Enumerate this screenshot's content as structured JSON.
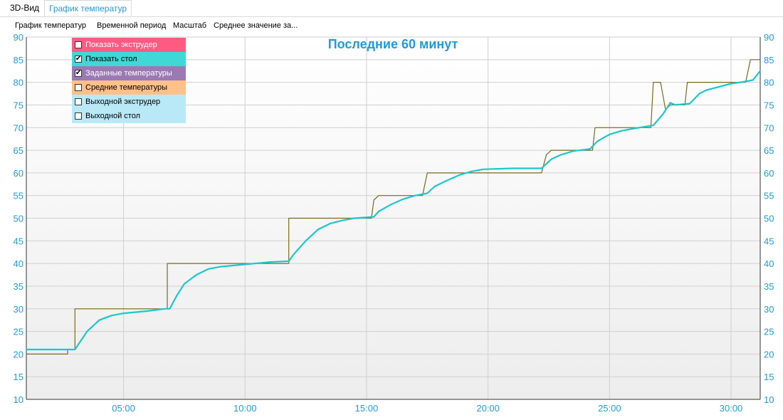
{
  "tabs": [
    {
      "label": "3D-Вид",
      "active": false
    },
    {
      "label": "График температур",
      "active": true
    }
  ],
  "menu": [
    "График температур",
    "Временной период",
    "Масштаб",
    "Среднее значение за..."
  ],
  "legend": [
    {
      "label": "Показать экструдер",
      "checked": false,
      "color": "#ff5a82"
    },
    {
      "label": "Показать стол",
      "checked": true,
      "color": "#40d8d6"
    },
    {
      "label": "Заданные температуры",
      "checked": true,
      "color": "#9a7ab3"
    },
    {
      "label": "Средние температуры",
      "checked": false,
      "color": "#ffc08a"
    },
    {
      "label": "Выходной экструдер",
      "checked": false,
      "color": "#b9e9f7"
    },
    {
      "label": "Выходной стол",
      "checked": false,
      "color": "#b9e9f7"
    }
  ],
  "chart_data": {
    "type": "line",
    "title": "Последние 60 минут",
    "xlabel": "",
    "ylabel": "",
    "x_unit": "minutes",
    "xlim": [
      1.0,
      31.2
    ],
    "ylim": [
      10,
      90
    ],
    "y_ticks": [
      10,
      15,
      20,
      25,
      30,
      35,
      40,
      45,
      50,
      55,
      60,
      65,
      70,
      75,
      80,
      85,
      90
    ],
    "x_ticks": [
      {
        "value": 5,
        "label": "05:00"
      },
      {
        "value": 10,
        "label": "10:00"
      },
      {
        "value": 15,
        "label": "15:00"
      },
      {
        "value": 20,
        "label": "20:00"
      },
      {
        "value": 25,
        "label": "25:00"
      },
      {
        "value": 30,
        "label": "30:00"
      }
    ],
    "grid": true,
    "accent_color": "#1e9bd7",
    "series": [
      {
        "color": "#7a6a1a",
        "points": [
          [
            1.0,
            20
          ],
          [
            2.7,
            20
          ],
          [
            2.7,
            21
          ],
          [
            3.0,
            21
          ],
          [
            3.0,
            30
          ],
          [
            6.6,
            30
          ],
          [
            6.8,
            30
          ],
          [
            6.8,
            40
          ],
          [
            11.6,
            40
          ],
          [
            11.8,
            40
          ],
          [
            11.8,
            50
          ],
          [
            15.2,
            50
          ],
          [
            15.3,
            54
          ],
          [
            15.5,
            55
          ],
          [
            17.3,
            55
          ],
          [
            17.5,
            60
          ],
          [
            22.2,
            60
          ],
          [
            22.4,
            64
          ],
          [
            22.6,
            65
          ],
          [
            24.3,
            65
          ],
          [
            24.4,
            70
          ],
          [
            26.7,
            70
          ],
          [
            26.8,
            80
          ],
          [
            27.1,
            80
          ],
          [
            27.3,
            74
          ],
          [
            27.5,
            75
          ],
          [
            28.1,
            75
          ],
          [
            28.2,
            80
          ],
          [
            30.6,
            80
          ],
          [
            30.8,
            85
          ],
          [
            31.2,
            85
          ]
        ]
      },
      {
        "color": "#1ac8cc",
        "points": [
          [
            1.0,
            21
          ],
          [
            2.0,
            21
          ],
          [
            3.0,
            21
          ],
          [
            3.5,
            25
          ],
          [
            4.0,
            27.5
          ],
          [
            4.5,
            28.5
          ],
          [
            5.0,
            29
          ],
          [
            6.0,
            29.5
          ],
          [
            6.7,
            30
          ],
          [
            6.9,
            30
          ],
          [
            7.2,
            33
          ],
          [
            7.5,
            35.5
          ],
          [
            8.0,
            37.5
          ],
          [
            8.5,
            38.8
          ],
          [
            9.0,
            39.3
          ],
          [
            10.0,
            39.8
          ],
          [
            11.0,
            40.3
          ],
          [
            11.8,
            40.5
          ],
          [
            12.0,
            42
          ],
          [
            12.5,
            45
          ],
          [
            13.0,
            47.5
          ],
          [
            13.5,
            48.8
          ],
          [
            14.0,
            49.5
          ],
          [
            14.5,
            50
          ],
          [
            15.3,
            50.3
          ],
          [
            15.5,
            51.5
          ],
          [
            16.0,
            53
          ],
          [
            16.5,
            54.2
          ],
          [
            17.0,
            55
          ],
          [
            17.5,
            55.5
          ],
          [
            17.8,
            57
          ],
          [
            18.3,
            58.3
          ],
          [
            18.8,
            59.5
          ],
          [
            19.3,
            60.3
          ],
          [
            19.8,
            60.8
          ],
          [
            21.0,
            61
          ],
          [
            22.2,
            61
          ],
          [
            22.6,
            63
          ],
          [
            23.0,
            64
          ],
          [
            23.5,
            64.8
          ],
          [
            24.2,
            65.3
          ],
          [
            24.5,
            67
          ],
          [
            25.0,
            68.5
          ],
          [
            25.5,
            69.3
          ],
          [
            26.0,
            69.8
          ],
          [
            26.8,
            70.5
          ],
          [
            27.2,
            73
          ],
          [
            27.5,
            75.5
          ],
          [
            27.7,
            75
          ],
          [
            28.3,
            75.3
          ],
          [
            28.7,
            77.5
          ],
          [
            29.0,
            78.3
          ],
          [
            29.5,
            79
          ],
          [
            30.0,
            79.7
          ],
          [
            30.5,
            80.1
          ],
          [
            30.9,
            80.5
          ],
          [
            31.2,
            82.5
          ]
        ]
      }
    ]
  }
}
